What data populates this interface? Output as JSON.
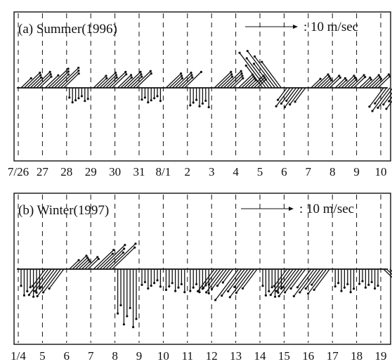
{
  "chart_data": [
    {
      "type": "vector",
      "title": "(a) Summer(1996)",
      "scale_label": ": 10 m/sec",
      "scale_value_mps": 10,
      "x_tick_labels": [
        "7/26",
        "27",
        "28",
        "29",
        "30",
        "31",
        "8/1",
        "2",
        "3",
        "4",
        "5",
        "6",
        "7",
        "8",
        "9",
        "10"
      ],
      "grid": "dashed vertical day lines",
      "segments": [
        {
          "day": "7/26",
          "dir": "NE",
          "speed": 5
        },
        {
          "day": "27",
          "dir": "NE",
          "speed": 6
        },
        {
          "day": "28",
          "dir": "S",
          "speed": 3
        },
        {
          "day": "29",
          "dir": "NE",
          "speed": 5
        },
        {
          "day": "30",
          "dir": "NE",
          "speed": 5
        },
        {
          "day": "31",
          "dir": "S",
          "speed": 3
        },
        {
          "day": "8/1",
          "dir": "NE",
          "speed": 5
        },
        {
          "day": "2",
          "dir": "S",
          "speed": 4
        },
        {
          "day": "3",
          "dir": "NE",
          "speed": 5
        },
        {
          "day": "4",
          "dir": "NE",
          "speed": 4
        },
        {
          "day": "5",
          "dir": "NW",
          "speed": 10
        },
        {
          "day": "6",
          "dir": "SW",
          "speed": 5
        },
        {
          "day": "7",
          "dir": "NE",
          "speed": 4
        },
        {
          "day": "8",
          "dir": "NE",
          "speed": 4
        },
        {
          "day": "9",
          "dir": "NE",
          "speed": 4
        },
        {
          "day": "10",
          "dir": "SW",
          "speed": 6
        }
      ]
    },
    {
      "type": "vector",
      "title": "(b) Winter(1997)",
      "scale_label": ": 10 m/sec",
      "scale_value_mps": 10,
      "x_tick_labels": [
        "1/4",
        "5",
        "6",
        "7",
        "8",
        "9",
        "10",
        "11",
        "12",
        "13",
        "14",
        "15",
        "16",
        "17",
        "18",
        "19"
      ],
      "grid": "dashed vertical day lines",
      "segments": [
        {
          "day": "1/4",
          "dir": "S",
          "speed": 6
        },
        {
          "day": "5",
          "dir": "SW",
          "speed": 7
        },
        {
          "day": "6",
          "dir": "NE",
          "speed": 4
        },
        {
          "day": "7",
          "dir": "NE",
          "speed": 8
        },
        {
          "day": "8",
          "dir": "S",
          "speed": 12
        },
        {
          "day": "9",
          "dir": "S",
          "speed": 4
        },
        {
          "day": "10",
          "dir": "S",
          "speed": 5
        },
        {
          "day": "11",
          "dir": "S",
          "speed": 5
        },
        {
          "day": "12",
          "dir": "SW",
          "speed": 6
        },
        {
          "day": "13",
          "dir": "SW",
          "speed": 8
        },
        {
          "day": "14",
          "dir": "S",
          "speed": 6
        },
        {
          "day": "15",
          "dir": "SW",
          "speed": 7
        },
        {
          "day": "16",
          "dir": "SW",
          "speed": 7
        },
        {
          "day": "17",
          "dir": "S",
          "speed": 5
        },
        {
          "day": "18",
          "dir": "S",
          "speed": 4
        },
        {
          "day": "19",
          "dir": "SE",
          "speed": 5
        }
      ]
    }
  ]
}
